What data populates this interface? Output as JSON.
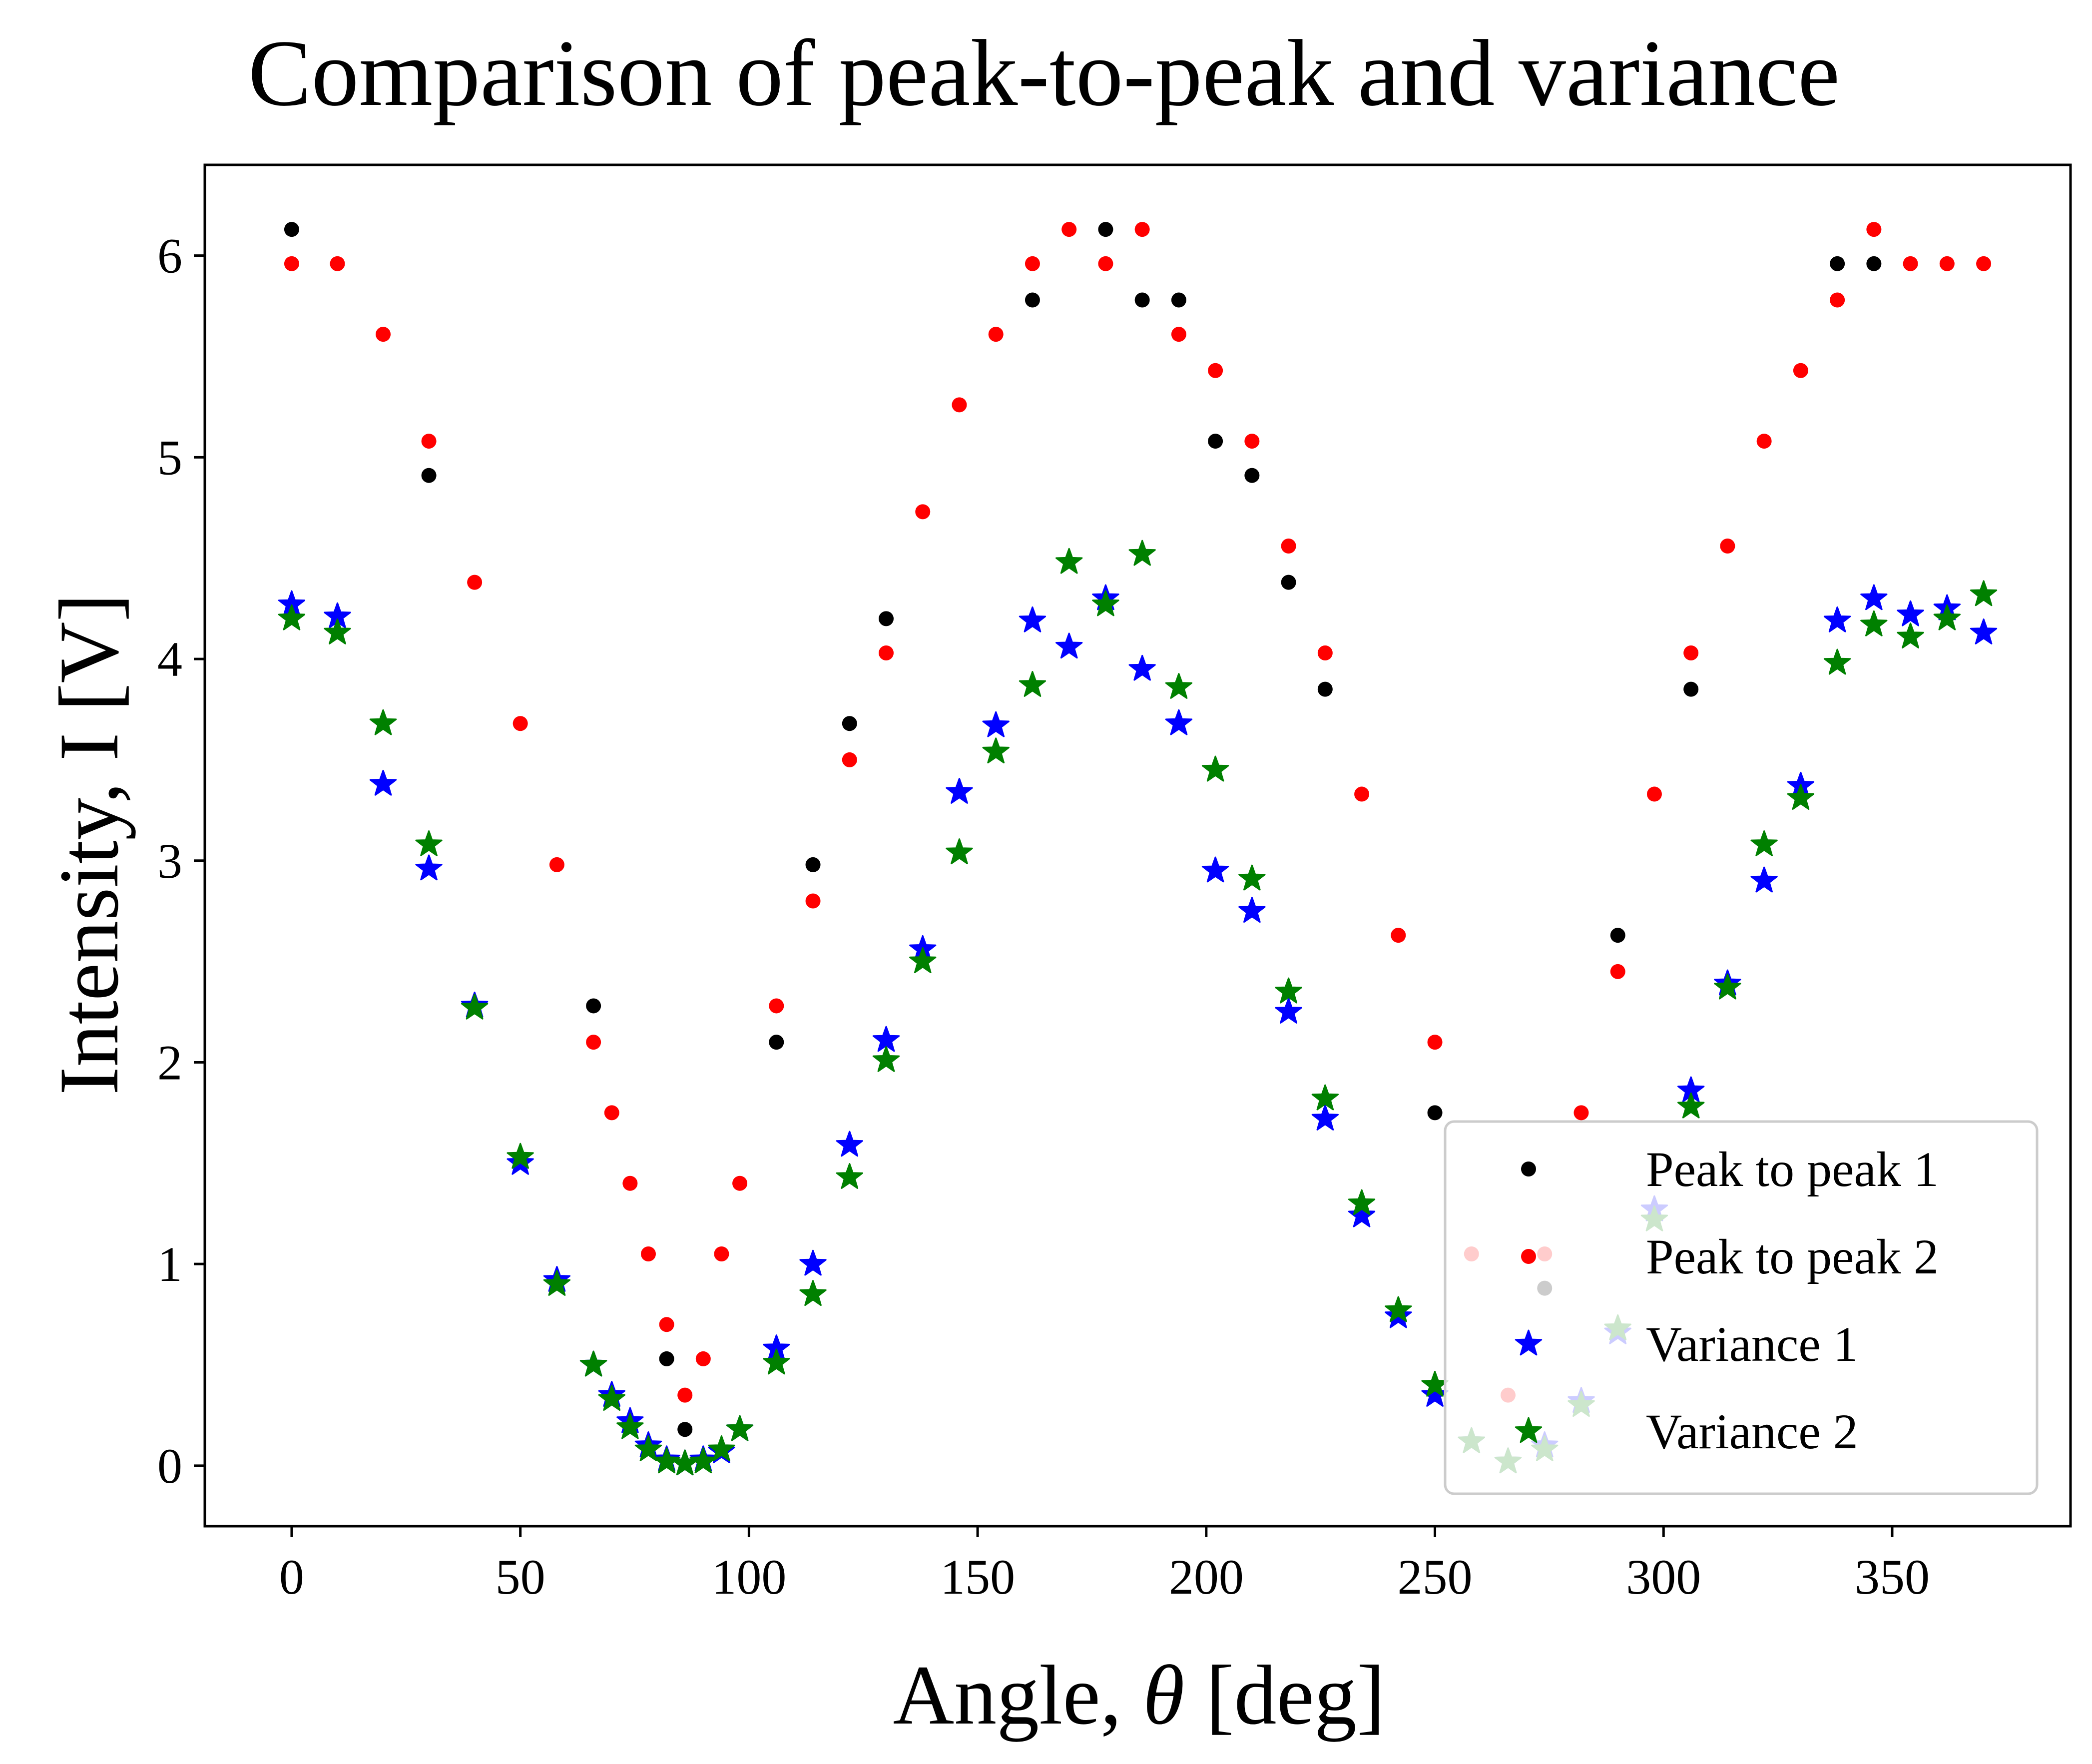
{
  "chart_data": {
    "type": "scatter",
    "title": "Comparison of peak-to-peak and variance",
    "xlabel_prefix": "Angle, ",
    "xlabel_symbol": "θ",
    "xlabel_suffix": " [deg]",
    "ylabel": "Intensity, I [V]",
    "xlim": [
      -19,
      389
    ],
    "ylim": [
      -0.3,
      6.45
    ],
    "xticks": [
      0,
      50,
      100,
      150,
      200,
      250,
      300,
      350
    ],
    "yticks": [
      0,
      1,
      2,
      3,
      4,
      5,
      6
    ],
    "grid": false,
    "legend_placement": "lower-right",
    "series": [
      {
        "name": "Peak to peak 1",
        "marker": "dot",
        "color": "#000000",
        "x": [
          0,
          30,
          66,
          82,
          86,
          106,
          114,
          122,
          130,
          162,
          178,
          186,
          194,
          202,
          210,
          218,
          226,
          250,
          274,
          290,
          306,
          338,
          346
        ],
        "y": [
          6.13,
          4.91,
          2.28,
          0.53,
          0.18,
          2.1,
          2.98,
          3.68,
          4.2,
          5.78,
          6.13,
          5.78,
          5.78,
          5.08,
          4.91,
          4.38,
          3.85,
          1.75,
          0.88,
          2.63,
          3.85,
          5.96,
          5.96
        ]
      },
      {
        "name": "Peak to peak 2",
        "marker": "dot",
        "color": "#ff0000",
        "x": [
          0,
          10,
          20,
          30,
          40,
          50,
          58,
          66,
          70,
          74,
          78,
          82,
          86,
          90,
          94,
          98,
          106,
          114,
          122,
          130,
          138,
          146,
          154,
          162,
          170,
          178,
          186,
          194,
          202,
          210,
          218,
          226,
          234,
          242,
          250,
          258,
          266,
          274,
          282,
          290,
          298,
          306,
          314,
          322,
          330,
          338,
          346,
          354,
          362,
          370
        ],
        "y": [
          5.96,
          5.96,
          5.61,
          5.08,
          4.38,
          3.68,
          2.98,
          2.1,
          1.75,
          1.4,
          1.05,
          0.7,
          0.35,
          0.53,
          1.05,
          1.4,
          2.28,
          2.8,
          3.5,
          4.03,
          4.73,
          5.26,
          5.61,
          5.96,
          6.13,
          5.96,
          6.13,
          5.61,
          5.43,
          5.08,
          4.56,
          4.03,
          3.33,
          2.63,
          2.1,
          1.05,
          0.35,
          1.05,
          1.75,
          2.45,
          3.33,
          4.03,
          4.56,
          5.08,
          5.43,
          5.78,
          6.13,
          5.96,
          5.96,
          5.96
        ]
      },
      {
        "name": "Variance 1",
        "marker": "star",
        "color": "#0000ff",
        "x": [
          0,
          10,
          20,
          30,
          40,
          50,
          58,
          66,
          70,
          74,
          78,
          82,
          86,
          90,
          94,
          98,
          106,
          114,
          122,
          130,
          138,
          146,
          154,
          162,
          170,
          178,
          186,
          194,
          202,
          210,
          218,
          226,
          234,
          242,
          250,
          258,
          266,
          274,
          282,
          290,
          298,
          306,
          314,
          322,
          330,
          338,
          346,
          354,
          362,
          370
        ],
        "y": [
          4.27,
          4.21,
          3.38,
          2.96,
          2.28,
          1.5,
          0.92,
          0.5,
          0.35,
          0.22,
          0.1,
          0.03,
          0.01,
          0.03,
          0.07,
          0.18,
          0.58,
          1.0,
          1.59,
          2.11,
          2.56,
          3.34,
          3.67,
          4.19,
          4.06,
          4.3,
          3.95,
          3.68,
          2.95,
          2.75,
          2.25,
          1.72,
          1.24,
          0.74,
          0.35,
          0.12,
          0.02,
          0.1,
          0.32,
          0.66,
          1.27,
          1.86,
          2.39,
          2.9,
          3.37,
          4.19,
          4.3,
          4.22,
          4.25,
          4.13
        ]
      },
      {
        "name": "Variance 2",
        "marker": "star",
        "color": "#008000",
        "x": [
          0,
          10,
          20,
          30,
          40,
          50,
          58,
          66,
          70,
          74,
          78,
          82,
          86,
          90,
          94,
          98,
          106,
          114,
          122,
          130,
          138,
          146,
          154,
          162,
          170,
          178,
          186,
          194,
          202,
          210,
          218,
          226,
          234,
          242,
          250,
          258,
          266,
          274,
          282,
          290,
          298,
          306,
          314,
          322,
          330,
          338,
          346,
          354,
          362,
          370
        ],
        "y": [
          4.2,
          4.13,
          3.68,
          3.08,
          2.27,
          1.53,
          0.9,
          0.5,
          0.33,
          0.19,
          0.08,
          0.02,
          0.01,
          0.02,
          0.08,
          0.18,
          0.51,
          0.85,
          1.43,
          2.01,
          2.5,
          3.04,
          3.54,
          3.87,
          4.48,
          4.27,
          4.52,
          3.86,
          3.45,
          2.91,
          2.35,
          1.82,
          1.3,
          0.77,
          0.4,
          0.12,
          0.02,
          0.08,
          0.3,
          0.68,
          1.22,
          1.78,
          2.37,
          3.08,
          3.31,
          3.98,
          4.17,
          4.11,
          4.2,
          4.32
        ]
      }
    ]
  }
}
